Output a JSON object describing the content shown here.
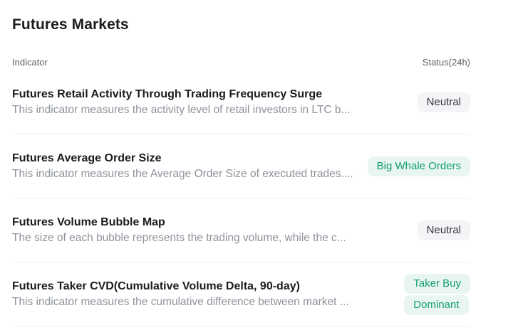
{
  "page": {
    "title": "Futures Markets"
  },
  "table": {
    "columns": {
      "indicator": "Indicator",
      "status": "Status(24h)"
    },
    "rows": [
      {
        "title": "Futures Retail Activity Through Trading Frequency Surge",
        "description": "This indicator measures the activity level of retail investors in LTC b...",
        "statuses": [
          {
            "label": "Neutral",
            "variant": "neutral"
          }
        ]
      },
      {
        "title": "Futures Average Order Size",
        "description": "This indicator measures the Average Order Size of executed trades....",
        "statuses": [
          {
            "label": "Big Whale Orders",
            "variant": "positive"
          }
        ]
      },
      {
        "title": "Futures Volume Bubble Map",
        "description": "The size of each bubble represents the trading volume, while the c...",
        "statuses": [
          {
            "label": "Neutral",
            "variant": "neutral"
          }
        ]
      },
      {
        "title": "Futures Taker CVD(Cumulative Volume Delta, 90-day)",
        "description": "This indicator measures the cumulative difference between market ...",
        "statuses": [
          {
            "label": "Taker Buy",
            "variant": "positive"
          },
          {
            "label": "Dominant",
            "variant": "positive"
          }
        ]
      }
    ]
  },
  "colors": {
    "title_text": "#1a1c20",
    "description_text": "#8d929a",
    "header_text": "#5c6066",
    "divider": "#ededef",
    "neutral_badge_bg": "#f4f4f6",
    "neutral_badge_text": "#303640",
    "positive_badge_bg": "#e9f6f0",
    "positive_badge_text": "#129c6d"
  }
}
